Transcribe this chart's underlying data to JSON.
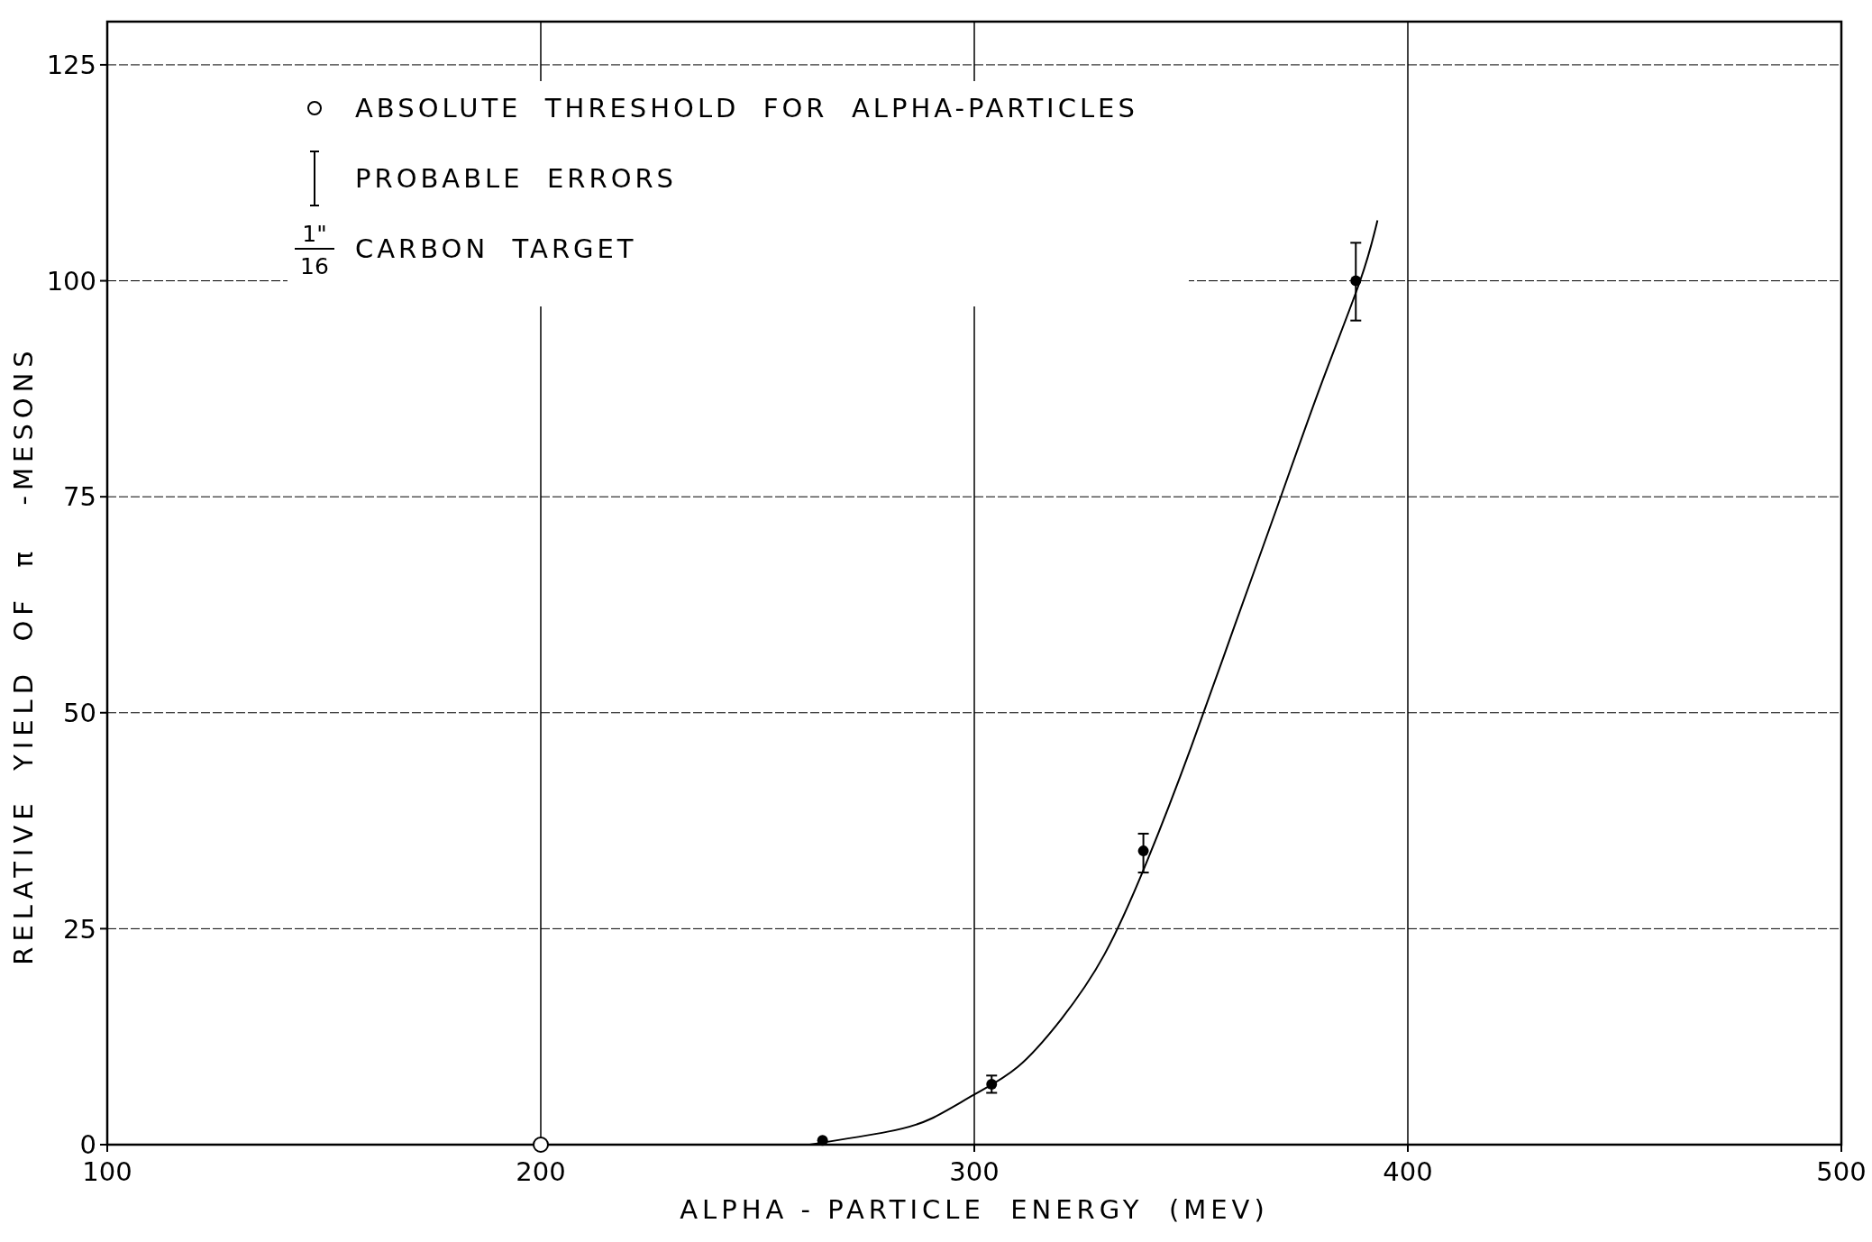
{
  "chart_data": {
    "type": "scatter",
    "xlabel": "ALPHA - PARTICLE  ENERGY  (MEV)",
    "ylabel": "RELATIVE  YIELD  OF  π   -MESONS",
    "xlim": [
      100,
      500
    ],
    "ylim": [
      0,
      130
    ],
    "xticks": [
      100,
      200,
      300,
      400,
      500
    ],
    "yticks": [
      0,
      25,
      50,
      75,
      100,
      125
    ],
    "grid": true,
    "legend": "top left",
    "marker": "circle",
    "series": [
      {
        "type": "line",
        "color": "#000000",
        "marker": "none",
        "line_style": "solid",
        "x": [
          262,
          280,
          290,
          300,
          310,
          320,
          330,
          340,
          350,
          360,
          370,
          380,
          389,
          393
        ],
        "values": [
          0,
          1.5,
          3,
          5.8,
          9,
          14.5,
          22,
          33,
          46,
          60,
          74,
          88,
          100,
          107
        ]
      },
      {
        "color": "#000000",
        "x": [
          265,
          304,
          339,
          388
        ],
        "values": [
          0.5,
          7,
          34,
          100
        ],
        "errors": [
          null,
          1,
          [
            31.5,
            36
          ],
          [
            95.4,
            104.4
          ]
        ]
      },
      {
        "type": "scatter",
        "name": "ABSOLUTE  THRESHOLD  FOR  ALPHA-PARTICLES",
        "color": "#000000",
        "marker": "circle_open",
        "x": [
          200
        ],
        "values": [
          0
        ]
      }
    ],
    "annotations": [
      "PROBABLE  ERRORS",
      "1\"",
      "16",
      "CARBON  TARGET"
    ]
  }
}
